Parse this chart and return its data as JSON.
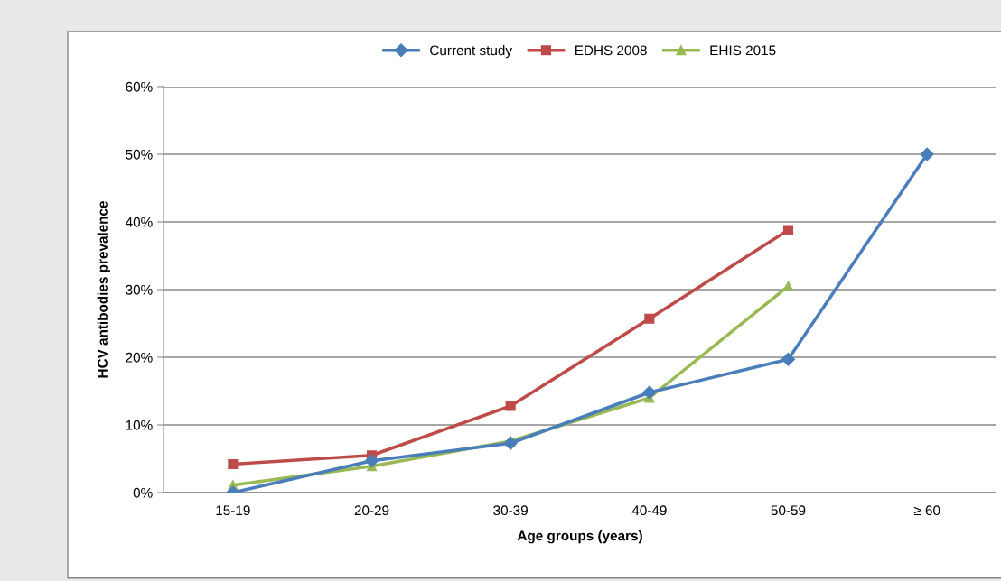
{
  "chart_data": {
    "type": "line",
    "xlabel": "Age groups (years)",
    "ylabel": "HCV antibodies prevalence",
    "categories": [
      "15-19",
      "20-29",
      "30-39",
      "40-49",
      "50-59",
      "≥ 60"
    ],
    "series": [
      {
        "name": "Current study",
        "color": "#4a7ebb",
        "marker": "diamond",
        "values": [
          0,
          4.7,
          7.3,
          14.8,
          19.7,
          50
        ]
      },
      {
        "name": "EDHS 2008",
        "color": "#be4b48",
        "marker": "square",
        "values": [
          4.2,
          5.5,
          12.8,
          25.7,
          38.8,
          null
        ]
      },
      {
        "name": "EHIS 2015",
        "color": "#98b954",
        "marker": "triangle",
        "values": [
          1.1,
          3.9,
          7.6,
          14.0,
          30.5,
          null
        ]
      }
    ],
    "ylim": [
      0,
      60
    ],
    "yticks": [
      {
        "value": 0,
        "label": "0%"
      },
      {
        "value": 10,
        "label": "10%"
      },
      {
        "value": 20,
        "label": "20%"
      },
      {
        "value": 30,
        "label": "30%"
      },
      {
        "value": 40,
        "label": "40%"
      },
      {
        "value": 50,
        "label": "50%"
      },
      {
        "value": 60,
        "label": "60%"
      }
    ],
    "grid": "y",
    "legend": "top",
    "line_style": "solid"
  }
}
